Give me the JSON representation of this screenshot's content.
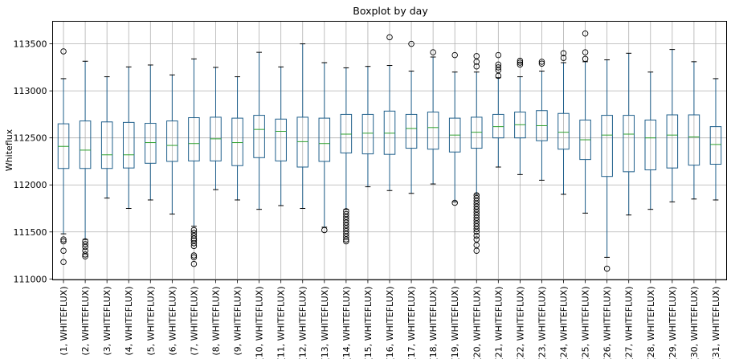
{
  "chart_data": {
    "type": "boxplot",
    "title": "Boxplot by day",
    "ylabel": "Whiteflux",
    "xlabel": "",
    "ylim": [
      110990,
      113740
    ],
    "yticks": [
      111000,
      111500,
      112000,
      112500,
      113000,
      113500
    ],
    "grid": true,
    "colors": {
      "box": "#1f5f8b",
      "median": "#2ca02c",
      "grid": "#b0b0b0"
    },
    "categories": [
      "(1, WHITEFLUX)",
      "(2, WHITEFLUX)",
      "(3, WHITEFLUX)",
      "(4, WHITEFLUX)",
      "(5, WHITEFLUX)",
      "(6, WHITEFLUX)",
      "(7, WHITEFLUX)",
      "(8, WHITEFLUX)",
      "(9, WHITEFLUX)",
      "(10, WHITEFLUX)",
      "(11, WHITEFLUX)",
      "(12, WHITEFLUX)",
      "(13, WHITEFLUX)",
      "(14, WHITEFLUX)",
      "(15, WHITEFLUX)",
      "(16, WHITEFLUX)",
      "(17, WHITEFLUX)",
      "(18, WHITEFLUX)",
      "(19, WHITEFLUX)",
      "(20, WHITEFLUX)",
      "(21, WHITEFLUX)",
      "(22, WHITEFLUX)",
      "(23, WHITEFLUX)",
      "(24, WHITEFLUX)",
      "(25, WHITEFLUX)",
      "(26, WHITEFLUX)",
      "(27, WHITEFLUX)",
      "(28, WHITEFLUX)",
      "(29, WHITEFLUX)",
      "(30, WHITEFLUX)",
      "(31, WHITEFLUX)"
    ],
    "boxes": [
      {
        "whislo": 111480,
        "q1": 112175,
        "med": 112410,
        "q3": 112650,
        "whishi": 113130,
        "fliers": [
          113420,
          111420,
          111400,
          111300,
          111180
        ]
      },
      {
        "whislo": 111420,
        "q1": 112175,
        "med": 112370,
        "q3": 112680,
        "whishi": 113315,
        "fliers": [
          111400,
          111370,
          111340,
          111300,
          111260,
          111240
        ]
      },
      {
        "whislo": 111860,
        "q1": 112175,
        "med": 112320,
        "q3": 112670,
        "whishi": 113150,
        "fliers": []
      },
      {
        "whislo": 111750,
        "q1": 112180,
        "med": 112320,
        "q3": 112665,
        "whishi": 113255,
        "fliers": []
      },
      {
        "whislo": 111840,
        "q1": 112230,
        "med": 112450,
        "q3": 112655,
        "whishi": 113275,
        "fliers": []
      },
      {
        "whislo": 111690,
        "q1": 112250,
        "med": 112420,
        "q3": 112680,
        "whishi": 113170,
        "fliers": []
      },
      {
        "whislo": 111560,
        "q1": 112255,
        "med": 112440,
        "q3": 112715,
        "whishi": 113340,
        "fliers": [
          111520,
          111490,
          111460,
          111430,
          111410,
          111380,
          111350,
          111250,
          111230,
          111160
        ]
      },
      {
        "whislo": 111950,
        "q1": 112255,
        "med": 112490,
        "q3": 112720,
        "whishi": 113250,
        "fliers": []
      },
      {
        "whislo": 111840,
        "q1": 112205,
        "med": 112450,
        "q3": 112710,
        "whishi": 113150,
        "fliers": []
      },
      {
        "whislo": 111740,
        "q1": 112290,
        "med": 112590,
        "q3": 112740,
        "whishi": 113410,
        "fliers": []
      },
      {
        "whislo": 111780,
        "q1": 112255,
        "med": 112570,
        "q3": 112700,
        "whishi": 113255,
        "fliers": []
      },
      {
        "whislo": 111750,
        "q1": 112190,
        "med": 112460,
        "q3": 112720,
        "whishi": 113500,
        "fliers": []
      },
      {
        "whislo": 111550,
        "q1": 112250,
        "med": 112440,
        "q3": 112710,
        "whishi": 113300,
        "fliers": [
          111520
        ]
      },
      {
        "whislo": 111740,
        "q1": 112340,
        "med": 112540,
        "q3": 112750,
        "whishi": 113245,
        "fliers": [
          111720,
          111690,
          111660,
          111630,
          111600,
          111570,
          111540,
          111510,
          111480,
          111450,
          111420,
          111400
        ]
      },
      {
        "whislo": 111980,
        "q1": 112330,
        "med": 112550,
        "q3": 112750,
        "whishi": 113260,
        "fliers": []
      },
      {
        "whislo": 111940,
        "q1": 112325,
        "med": 112550,
        "q3": 112785,
        "whishi": 113270,
        "fliers": [
          113570
        ]
      },
      {
        "whislo": 111910,
        "q1": 112390,
        "med": 112600,
        "q3": 112750,
        "whishi": 113210,
        "fliers": [
          113500
        ]
      },
      {
        "whislo": 112010,
        "q1": 112380,
        "med": 112610,
        "q3": 112775,
        "whishi": 113360,
        "fliers": [
          113410
        ]
      },
      {
        "whislo": 111820,
        "q1": 112350,
        "med": 112530,
        "q3": 112710,
        "whishi": 113200,
        "fliers": [
          113380,
          111810
        ]
      },
      {
        "whislo": 111900,
        "q1": 112390,
        "med": 112560,
        "q3": 112720,
        "whishi": 113200,
        "fliers": [
          113370,
          113310,
          113260,
          111890,
          111860,
          111830,
          111800,
          111770,
          111740,
          111710,
          111680,
          111650,
          111620,
          111590,
          111560,
          111530,
          111500,
          111460,
          111420,
          111360,
          111300
        ]
      },
      {
        "whislo": 112190,
        "q1": 112500,
        "med": 112620,
        "q3": 112750,
        "whishi": 113140,
        "fliers": [
          113380,
          113280,
          113250,
          113220,
          113160
        ]
      },
      {
        "whislo": 112110,
        "q1": 112500,
        "med": 112640,
        "q3": 112775,
        "whishi": 113150,
        "fliers": [
          113320,
          113300,
          113280
        ]
      },
      {
        "whislo": 112050,
        "q1": 112470,
        "med": 112630,
        "q3": 112790,
        "whishi": 113210,
        "fliers": [
          113310,
          113290
        ]
      },
      {
        "whislo": 111900,
        "q1": 112380,
        "med": 112560,
        "q3": 112760,
        "whishi": 113300,
        "fliers": [
          113400,
          113350
        ]
      },
      {
        "whislo": 111700,
        "q1": 112270,
        "med": 112480,
        "q3": 112690,
        "whishi": 113310,
        "fliers": [
          113610,
          113410,
          113340
        ]
      },
      {
        "whislo": 111230,
        "q1": 112090,
        "med": 112530,
        "q3": 112740,
        "whishi": 113330,
        "fliers": [
          111110
        ]
      },
      {
        "whislo": 111680,
        "q1": 112140,
        "med": 112540,
        "q3": 112740,
        "whishi": 113400,
        "fliers": []
      },
      {
        "whislo": 111740,
        "q1": 112160,
        "med": 112500,
        "q3": 112690,
        "whishi": 113200,
        "fliers": []
      },
      {
        "whislo": 111820,
        "q1": 112180,
        "med": 112530,
        "q3": 112745,
        "whishi": 113440,
        "fliers": []
      },
      {
        "whislo": 111850,
        "q1": 112210,
        "med": 112510,
        "q3": 112745,
        "whishi": 113310,
        "fliers": []
      },
      {
        "whislo": 111840,
        "q1": 112220,
        "med": 112430,
        "q3": 112620,
        "whishi": 113130,
        "fliers": []
      }
    ]
  }
}
